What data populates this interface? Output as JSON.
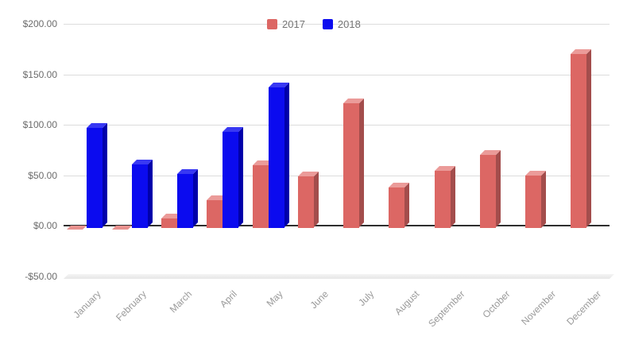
{
  "chart_data": {
    "type": "bar",
    "title": "",
    "xlabel": "",
    "ylabel": "",
    "categories": [
      "January",
      "February",
      "March",
      "April",
      "May",
      "June",
      "July",
      "August",
      "September",
      "October",
      "November",
      "December"
    ],
    "series": [
      {
        "name": "2017",
        "color": "#dc6764",
        "color_top": "#eb9b99",
        "color_side": "#a34d4c",
        "color_negative": "#e8918f",
        "values": [
          -4,
          -4,
          7,
          25,
          60,
          49,
          121,
          38,
          54,
          70,
          50,
          170
        ]
      },
      {
        "name": "2018",
        "color": "#0b0bef",
        "color_top": "#3838f3",
        "color_side": "#0000aa",
        "color_negative": "#5a5af5",
        "values": [
          97,
          61,
          51,
          93,
          137,
          null,
          null,
          null,
          null,
          null,
          null,
          null
        ]
      }
    ],
    "y_ticks": [
      {
        "value": 200,
        "label": "$200.00"
      },
      {
        "value": 150,
        "label": "$150.00"
      },
      {
        "value": 100,
        "label": "$100.00"
      },
      {
        "value": 50,
        "label": "$50.00"
      },
      {
        "value": 0,
        "label": "$0.00"
      },
      {
        "value": -50,
        "label": "-$50.00"
      }
    ],
    "ylim": [
      -50,
      200
    ],
    "grid": true,
    "legend_position": "top-center"
  },
  "colors": {
    "background": "#ffffff",
    "gridline": "#dcdcdc",
    "zero_axis": "#2e2e2e",
    "floor_band": "#ececec",
    "y_label_text": "#6b6b6b",
    "x_label_text": "#9a9a9a",
    "legend_text": "#757575"
  },
  "legend": {
    "items": [
      {
        "label": "2017",
        "swatch": "#dc6764",
        "swatch_icon": "legend-swatch-2017"
      },
      {
        "label": "2018",
        "swatch": "#0b0bef",
        "swatch_icon": "legend-swatch-2018"
      }
    ]
  }
}
